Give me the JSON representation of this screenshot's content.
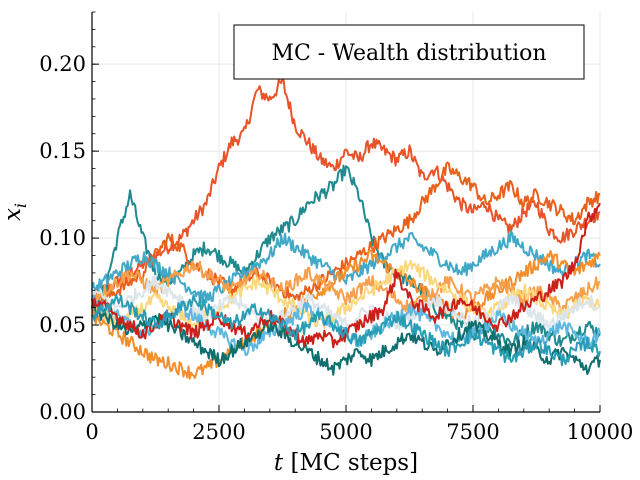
{
  "chart_data": {
    "type": "line",
    "title": "MC - Wealth distribution",
    "xlabel": "t [MC steps]",
    "xlabel_italic": "t",
    "xlabel_rest": " [MC steps]",
    "ylabel": "x_i",
    "ylabel_base": "x",
    "ylabel_sub": "i",
    "xlim": [
      0,
      10000
    ],
    "ylim": [
      0.0,
      0.23
    ],
    "xticks": [
      0,
      2500,
      5000,
      7500,
      10000
    ],
    "xtick_labels": [
      "0",
      "2500",
      "5000",
      "7500",
      "10000"
    ],
    "yticks": [
      0.0,
      0.05,
      0.1,
      0.15,
      0.2
    ],
    "ytick_labels": [
      "0.00",
      "0.05",
      "0.10",
      "0.15",
      "0.20"
    ],
    "grid": true,
    "legend_position": "top-right",
    "series": [
      {
        "color": "#E8532A",
        "x": [
          0,
          250,
          500,
          750,
          1000,
          1250,
          1500,
          1750,
          2000,
          2250,
          2500,
          2750,
          3000,
          3250,
          3500,
          3750,
          4000,
          4250,
          4500,
          4750,
          5000,
          5250,
          5500,
          5750,
          6000,
          6250,
          6500,
          6750,
          7000,
          7250,
          7500,
          7750,
          8000,
          8250,
          8500,
          8750,
          9000,
          9250,
          9500,
          9750,
          10000
        ],
        "y": [
          0.065,
          0.07,
          0.075,
          0.08,
          0.085,
          0.09,
          0.095,
          0.1,
          0.11,
          0.12,
          0.14,
          0.155,
          0.16,
          0.185,
          0.18,
          0.19,
          0.165,
          0.155,
          0.145,
          0.14,
          0.15,
          0.145,
          0.155,
          0.15,
          0.145,
          0.15,
          0.135,
          0.14,
          0.13,
          0.12,
          0.115,
          0.12,
          0.11,
          0.105,
          0.115,
          0.12,
          0.105,
          0.1,
          0.105,
          0.11,
          0.115
        ]
      },
      {
        "color": "#1F8A8E",
        "x": [
          0,
          250,
          500,
          750,
          1000,
          1250,
          1500,
          1750,
          2000,
          2250,
          2500,
          2750,
          3000,
          3250,
          3500,
          3750,
          4000,
          4250,
          4500,
          4750,
          5000,
          5250,
          5500,
          5750,
          6000,
          6250,
          6500,
          6750,
          7000,
          7250,
          7500,
          7750,
          8000,
          8250,
          8500,
          8750,
          9000,
          9250,
          9500,
          9750,
          10000
        ],
        "y": [
          0.06,
          0.07,
          0.1,
          0.125,
          0.1,
          0.08,
          0.075,
          0.08,
          0.09,
          0.095,
          0.09,
          0.085,
          0.08,
          0.09,
          0.1,
          0.105,
          0.11,
          0.12,
          0.125,
          0.13,
          0.14,
          0.125,
          0.1,
          0.085,
          0.08,
          0.075,
          0.07,
          0.06,
          0.055,
          0.05,
          0.045,
          0.05,
          0.045,
          0.04,
          0.045,
          0.05,
          0.045,
          0.04,
          0.045,
          0.05,
          0.045
        ]
      },
      {
        "color": "#E8601C",
        "x": [
          0,
          250,
          500,
          750,
          1000,
          1250,
          1500,
          1750,
          2000,
          2250,
          2500,
          2750,
          3000,
          3250,
          3500,
          3750,
          4000,
          4250,
          4500,
          4750,
          5000,
          5250,
          5500,
          5750,
          6000,
          6250,
          6500,
          6750,
          7000,
          7250,
          7500,
          7750,
          8000,
          8250,
          8500,
          8750,
          9000,
          9250,
          9500,
          9750,
          10000
        ],
        "y": [
          0.06,
          0.065,
          0.07,
          0.075,
          0.08,
          0.09,
          0.1,
          0.095,
          0.085,
          0.08,
          0.075,
          0.07,
          0.075,
          0.08,
          0.075,
          0.07,
          0.065,
          0.07,
          0.075,
          0.08,
          0.085,
          0.09,
          0.095,
          0.1,
          0.105,
          0.11,
          0.12,
          0.13,
          0.14,
          0.135,
          0.13,
          0.12,
          0.125,
          0.13,
          0.12,
          0.125,
          0.12,
          0.115,
          0.11,
          0.12,
          0.125
        ]
      },
      {
        "color": "#41A8C7",
        "x": [
          0,
          250,
          500,
          750,
          1000,
          1250,
          1500,
          1750,
          2000,
          2250,
          2500,
          2750,
          3000,
          3250,
          3500,
          3750,
          4000,
          4250,
          4500,
          4750,
          5000,
          5250,
          5500,
          5750,
          6000,
          6250,
          6500,
          6750,
          7000,
          7250,
          7500,
          7750,
          8000,
          8250,
          8500,
          8750,
          9000,
          9250,
          9500,
          9750,
          10000
        ],
        "y": [
          0.07,
          0.075,
          0.08,
          0.085,
          0.09,
          0.085,
          0.08,
          0.075,
          0.07,
          0.065,
          0.07,
          0.075,
          0.08,
          0.085,
          0.09,
          0.1,
          0.095,
          0.09,
          0.085,
          0.08,
          0.075,
          0.08,
          0.085,
          0.09,
          0.095,
          0.1,
          0.095,
          0.09,
          0.085,
          0.08,
          0.085,
          0.09,
          0.095,
          0.1,
          0.095,
          0.09,
          0.085,
          0.08,
          0.085,
          0.09,
          0.085
        ]
      },
      {
        "color": "#F28E2B",
        "x": [
          0,
          250,
          500,
          750,
          1000,
          1250,
          1500,
          1750,
          2000,
          2250,
          2500,
          2750,
          3000,
          3250,
          3500,
          3750,
          4000,
          4250,
          4500,
          4750,
          5000,
          5250,
          5500,
          5750,
          6000,
          6250,
          6500,
          6750,
          7000,
          7250,
          7500,
          7750,
          8000,
          8250,
          8500,
          8750,
          9000,
          9250,
          9500,
          9750,
          10000
        ],
        "y": [
          0.055,
          0.05,
          0.045,
          0.04,
          0.035,
          0.03,
          0.028,
          0.025,
          0.022,
          0.025,
          0.03,
          0.035,
          0.04,
          0.045,
          0.05,
          0.055,
          0.06,
          0.065,
          0.07,
          0.075,
          0.08,
          0.085,
          0.09,
          0.085,
          0.08,
          0.075,
          0.07,
          0.065,
          0.06,
          0.055,
          0.06,
          0.065,
          0.07,
          0.075,
          0.08,
          0.085,
          0.09,
          0.085,
          0.08,
          0.085,
          0.09
        ]
      },
      {
        "color": "#F6A04D",
        "x": [
          0,
          250,
          500,
          750,
          1000,
          1250,
          1500,
          1750,
          2000,
          2250,
          2500,
          2750,
          3000,
          3250,
          3500,
          3750,
          4000,
          4250,
          4500,
          4750,
          5000,
          5250,
          5500,
          5750,
          6000,
          6250,
          6500,
          6750,
          7000,
          7250,
          7500,
          7750,
          8000,
          8250,
          8500,
          8750,
          9000,
          9250,
          9500,
          9750,
          10000
        ],
        "y": [
          0.065,
          0.07,
          0.075,
          0.08,
          0.075,
          0.07,
          0.075,
          0.08,
          0.085,
          0.08,
          0.075,
          0.07,
          0.075,
          0.08,
          0.075,
          0.07,
          0.075,
          0.08,
          0.075,
          0.07,
          0.065,
          0.07,
          0.075,
          0.07,
          0.065,
          0.06,
          0.065,
          0.07,
          0.075,
          0.07,
          0.065,
          0.07,
          0.075,
          0.07,
          0.065,
          0.07,
          0.065,
          0.06,
          0.065,
          0.07,
          0.075
        ]
      },
      {
        "color": "#FBD87F",
        "x": [
          0,
          250,
          500,
          750,
          1000,
          1250,
          1500,
          1750,
          2000,
          2250,
          2500,
          2750,
          3000,
          3250,
          3500,
          3750,
          4000,
          4250,
          4500,
          4750,
          5000,
          5250,
          5500,
          5750,
          6000,
          6250,
          6500,
          6750,
          7000,
          7250,
          7500,
          7750,
          8000,
          8250,
          8500,
          8750,
          9000,
          9250,
          9500,
          9750,
          10000
        ],
        "y": [
          0.06,
          0.055,
          0.05,
          0.055,
          0.06,
          0.065,
          0.06,
          0.055,
          0.05,
          0.055,
          0.06,
          0.065,
          0.07,
          0.075,
          0.07,
          0.065,
          0.06,
          0.055,
          0.05,
          0.055,
          0.06,
          0.065,
          0.07,
          0.075,
          0.08,
          0.085,
          0.08,
          0.075,
          0.07,
          0.065,
          0.06,
          0.055,
          0.06,
          0.065,
          0.07,
          0.065,
          0.06,
          0.055,
          0.06,
          0.065,
          0.06
        ]
      },
      {
        "color": "#DCE6EA",
        "x": [
          0,
          250,
          500,
          750,
          1000,
          1250,
          1500,
          1750,
          2000,
          2250,
          2500,
          2750,
          3000,
          3250,
          3500,
          3750,
          4000,
          4250,
          4500,
          4750,
          5000,
          5250,
          5500,
          5750,
          6000,
          6250,
          6500,
          6750,
          7000,
          7250,
          7500,
          7750,
          8000,
          8250,
          8500,
          8750,
          9000,
          9250,
          9500,
          9750,
          10000
        ],
        "y": [
          0.07,
          0.065,
          0.06,
          0.065,
          0.07,
          0.075,
          0.07,
          0.065,
          0.06,
          0.055,
          0.06,
          0.065,
          0.06,
          0.055,
          0.05,
          0.055,
          0.06,
          0.065,
          0.06,
          0.055,
          0.05,
          0.055,
          0.06,
          0.055,
          0.05,
          0.055,
          0.06,
          0.065,
          0.06,
          0.055,
          0.05,
          0.055,
          0.06,
          0.065,
          0.06,
          0.055,
          0.05,
          0.055,
          0.06,
          0.065,
          0.06
        ]
      },
      {
        "color": "#5DB7DE",
        "x": [
          0,
          250,
          500,
          750,
          1000,
          1250,
          1500,
          1750,
          2000,
          2250,
          2500,
          2750,
          3000,
          3250,
          3500,
          3750,
          4000,
          4250,
          4500,
          4750,
          5000,
          5250,
          5500,
          5750,
          6000,
          6250,
          6500,
          6750,
          7000,
          7250,
          7500,
          7750,
          8000,
          8250,
          8500,
          8750,
          9000,
          9250,
          9500,
          9750,
          10000
        ],
        "y": [
          0.065,
          0.06,
          0.055,
          0.05,
          0.045,
          0.05,
          0.055,
          0.06,
          0.055,
          0.05,
          0.045,
          0.04,
          0.035,
          0.04,
          0.045,
          0.05,
          0.055,
          0.06,
          0.055,
          0.05,
          0.045,
          0.04,
          0.045,
          0.05,
          0.055,
          0.06,
          0.055,
          0.05,
          0.045,
          0.04,
          0.045,
          0.05,
          0.055,
          0.05,
          0.045,
          0.04,
          0.045,
          0.05,
          0.045,
          0.04,
          0.045
        ]
      },
      {
        "color": "#0F6E6E",
        "x": [
          0,
          250,
          500,
          750,
          1000,
          1250,
          1500,
          1750,
          2000,
          2250,
          2500,
          2750,
          3000,
          3250,
          3500,
          3750,
          4000,
          4250,
          4500,
          4750,
          5000,
          5250,
          5500,
          5750,
          6000,
          6250,
          6500,
          6750,
          7000,
          7250,
          7500,
          7750,
          8000,
          8250,
          8500,
          8750,
          9000,
          9250,
          9500,
          9750,
          10000
        ],
        "y": [
          0.06,
          0.055,
          0.05,
          0.045,
          0.05,
          0.055,
          0.05,
          0.045,
          0.04,
          0.035,
          0.03,
          0.035,
          0.04,
          0.045,
          0.05,
          0.045,
          0.04,
          0.035,
          0.03,
          0.025,
          0.03,
          0.035,
          0.03,
          0.035,
          0.04,
          0.045,
          0.04,
          0.035,
          0.04,
          0.045,
          0.05,
          0.045,
          0.04,
          0.035,
          0.04,
          0.035,
          0.03,
          0.035,
          0.03,
          0.025,
          0.03
        ]
      },
      {
        "color": "#CC1F1A",
        "x": [
          0,
          250,
          500,
          750,
          1000,
          1250,
          1500,
          1750,
          2000,
          2250,
          2500,
          2750,
          3000,
          3250,
          3500,
          3750,
          4000,
          4250,
          4500,
          4750,
          5000,
          5250,
          5500,
          5750,
          6000,
          6250,
          6500,
          6750,
          7000,
          7250,
          7500,
          7750,
          8000,
          8250,
          8500,
          8750,
          9000,
          9250,
          9500,
          9750,
          10000
        ],
        "y": [
          0.065,
          0.06,
          0.055,
          0.05,
          0.045,
          0.05,
          0.055,
          0.05,
          0.045,
          0.05,
          0.055,
          0.05,
          0.045,
          0.05,
          0.055,
          0.05,
          0.045,
          0.04,
          0.045,
          0.04,
          0.045,
          0.05,
          0.055,
          0.06,
          0.08,
          0.065,
          0.06,
          0.055,
          0.06,
          0.065,
          0.06,
          0.055,
          0.05,
          0.055,
          0.06,
          0.065,
          0.07,
          0.075,
          0.085,
          0.11,
          0.12
        ]
      },
      {
        "color": "#2A9DB5",
        "x": [
          0,
          250,
          500,
          750,
          1000,
          1250,
          1500,
          1750,
          2000,
          2250,
          2500,
          2750,
          3000,
          3250,
          3500,
          3750,
          4000,
          4250,
          4500,
          4750,
          5000,
          5250,
          5500,
          5750,
          6000,
          6250,
          6500,
          6750,
          7000,
          7250,
          7500,
          7750,
          8000,
          8250,
          8500,
          8750,
          9000,
          9250,
          9500,
          9750,
          10000
        ],
        "y": [
          0.055,
          0.06,
          0.065,
          0.06,
          0.055,
          0.05,
          0.055,
          0.06,
          0.065,
          0.06,
          0.055,
          0.05,
          0.055,
          0.06,
          0.055,
          0.05,
          0.045,
          0.05,
          0.055,
          0.05,
          0.045,
          0.04,
          0.045,
          0.05,
          0.055,
          0.05,
          0.045,
          0.04,
          0.035,
          0.04,
          0.045,
          0.04,
          0.035,
          0.03,
          0.035,
          0.04,
          0.035,
          0.03,
          0.035,
          0.04,
          0.035
        ]
      }
    ]
  }
}
